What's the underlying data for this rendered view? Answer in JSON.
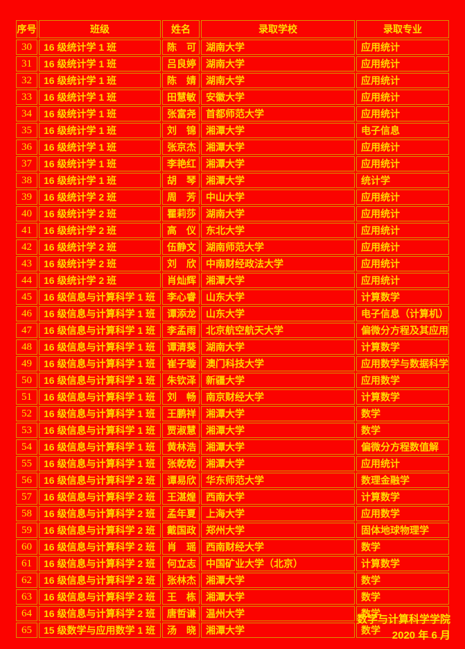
{
  "colors": {
    "background": "#fb0300",
    "border": "#d89400",
    "text": "#ffd700",
    "footer_text": "#ffe000"
  },
  "table": {
    "columns": [
      "序号",
      "班级",
      "姓名",
      "录取学校",
      "录取专业"
    ],
    "rows": [
      [
        "30",
        "16 级统计学 1 班",
        "陈　可",
        "湖南大学",
        "应用统计"
      ],
      [
        "31",
        "16 级统计学 1 班",
        "吕良婷",
        "湖南大学",
        "应用统计"
      ],
      [
        "32",
        "16 级统计学 1 班",
        "陈　婧",
        "湖南大学",
        "应用统计"
      ],
      [
        "33",
        "16 级统计学 1 班",
        "田慧敏",
        "安徽大学",
        "应用统计"
      ],
      [
        "34",
        "16 级统计学 1 班",
        "张富尧",
        "首都师范大学",
        "应用统计"
      ],
      [
        "35",
        "16 级统计学 1 班",
        "刘　锦",
        "湘潭大学",
        "电子信息"
      ],
      [
        "36",
        "16 级统计学 1 班",
        "张京杰",
        "湘潭大学",
        "应用统计"
      ],
      [
        "37",
        "16 级统计学 1 班",
        "李艳红",
        "湘潭大学",
        "应用统计"
      ],
      [
        "38",
        "16 级统计学 1 班",
        "胡　琴",
        "湘潭大学",
        "统计学"
      ],
      [
        "39",
        "16 级统计学 2 班",
        "周　芳",
        "中山大学",
        "应用统计"
      ],
      [
        "40",
        "16 级统计学 2 班",
        "瞿莉莎",
        "湖南大学",
        "应用统计"
      ],
      [
        "41",
        "16 级统计学 2 班",
        "高　仪",
        "东北大学",
        "应用统计"
      ],
      [
        "42",
        "16 级统计学 2 班",
        "伍静文",
        "湖南师范大学",
        "应用统计"
      ],
      [
        "43",
        "16 级统计学 2 班",
        "刘　欣",
        "中南财经政法大学",
        "应用统计"
      ],
      [
        "44",
        "16 级统计学 2 班",
        "肖灿辉",
        "湘潭大学",
        "应用统计"
      ],
      [
        "45",
        "16 级信息与计算科学 1 班",
        "李心睿",
        "山东大学",
        "计算数学"
      ],
      [
        "46",
        "16 级信息与计算科学 1 班",
        "谭添龙",
        "山东大学",
        "电子信息（计算机）"
      ],
      [
        "47",
        "16 级信息与计算科学 1 班",
        "李孟雨",
        "北京航空航天大学",
        "偏微分方程及其应用"
      ],
      [
        "48",
        "16 级信息与计算科学 1 班",
        "谭清葵",
        "湖南大学",
        "计算数学"
      ],
      [
        "49",
        "16 级信息与计算科学 1 班",
        "崔子璇",
        "澳门科技大学",
        "应用数学与数据科学"
      ],
      [
        "50",
        "16 级信息与计算科学 1 班",
        "朱钦泽",
        "新疆大学",
        "应用数学"
      ],
      [
        "51",
        "16 级信息与计算科学 1 班",
        "刘　畅",
        "南京财经大学",
        "计算数学"
      ],
      [
        "52",
        "16 级信息与计算科学 1 班",
        "王鹏祥",
        "湘潭大学",
        "数学"
      ],
      [
        "53",
        "16 级信息与计算科学 1 班",
        "贾淑慧",
        "湘潭大学",
        "数学"
      ],
      [
        "54",
        "16 级信息与计算科学 1 班",
        "黄林浩",
        "湘潭大学",
        "偏微分方程数值解"
      ],
      [
        "55",
        "16 级信息与计算科学 1 班",
        "张乾乾",
        "湘潭大学",
        "应用统计"
      ],
      [
        "56",
        "16 级信息与计算科学 2 班",
        "谭易欣",
        "华东师范大学",
        "数理金融学"
      ],
      [
        "57",
        "16 级信息与计算科学 2 班",
        "王湛煌",
        "西南大学",
        "计算数学"
      ],
      [
        "58",
        "16 级信息与计算科学 2 班",
        "孟年夏",
        "上海大学",
        "应用数学"
      ],
      [
        "59",
        "16 级信息与计算科学 2 班",
        "戴国政",
        "郑州大学",
        "固体地球物理学"
      ],
      [
        "60",
        "16 级信息与计算科学 2 班",
        "肖　瑶",
        "西南财经大学",
        "数学"
      ],
      [
        "61",
        "16 级信息与计算科学 2 班",
        "何立志",
        "中国矿业大学（北京）",
        "计算数学"
      ],
      [
        "62",
        "16 级信息与计算科学 2 班",
        "张林杰",
        "湘潭大学",
        "数学"
      ],
      [
        "63",
        "16 级信息与计算科学 2 班",
        "王　栋",
        "湘潭大学",
        "数学"
      ],
      [
        "64",
        "16 级信息与计算科学 2 班",
        "唐哲谦",
        "温州大学",
        "数学"
      ],
      [
        "65",
        "15 级数学与应用数学 1 班",
        "汤　晓",
        "湘潭大学",
        "数学"
      ]
    ]
  },
  "footer": {
    "college": "数学与计算科学学院",
    "date": "2020 年 6 月"
  }
}
